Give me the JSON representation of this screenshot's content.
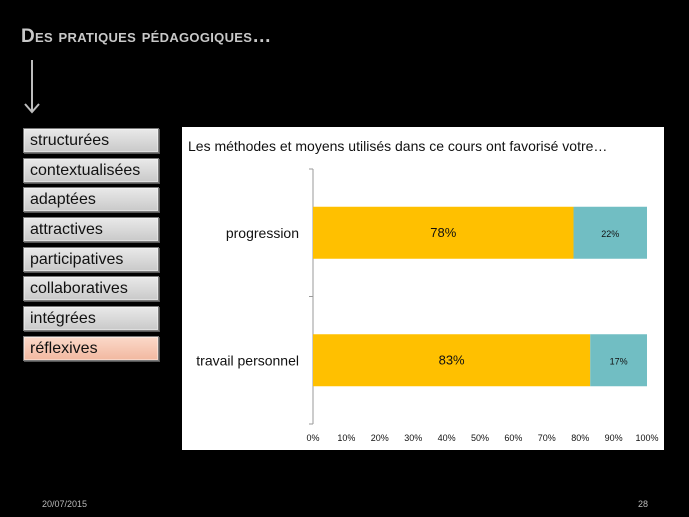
{
  "slide": {
    "title": "Des pratiques pédagogiques…",
    "footer_date": "20/07/2015",
    "page_number": "28"
  },
  "sidebar": {
    "items": [
      {
        "label": "structurées",
        "highlighted": false
      },
      {
        "label": "contextualisées",
        "highlighted": false
      },
      {
        "label": "adaptées",
        "highlighted": false
      },
      {
        "label": "attractives",
        "highlighted": false
      },
      {
        "label": "participatives",
        "highlighted": false
      },
      {
        "label": "collaboratives",
        "highlighted": false
      },
      {
        "label": "intégrées",
        "highlighted": false
      },
      {
        "label": "réflexives",
        "highlighted": true
      }
    ]
  },
  "chart_data": {
    "type": "bar",
    "orientation": "horizontal",
    "stacked": true,
    "title": "Les méthodes et moyens utilisés dans ce cours ont favorisé votre…",
    "categories": [
      "progression",
      "travail personnel"
    ],
    "series": [
      {
        "values": [
          78,
          83
        ],
        "labels": [
          "78%",
          "83%"
        ],
        "color": "#FFC000"
      },
      {
        "values": [
          22,
          17
        ],
        "labels": [
          "22%",
          "17%"
        ],
        "color": "#71BEC3"
      }
    ],
    "xlim": [
      0,
      100
    ],
    "xticks": [
      "0%",
      "10%",
      "20%",
      "30%",
      "40%",
      "50%",
      "60%",
      "70%",
      "80%",
      "90%",
      "100%"
    ],
    "grid": false,
    "legend": "none"
  }
}
